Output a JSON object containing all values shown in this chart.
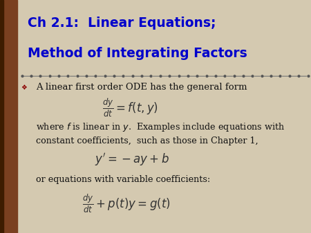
{
  "title_line1": "Ch 2.1:  Linear Equations;",
  "title_line2": "Method of Integrating Factors",
  "title_color": "#0000CC",
  "bg_color": "#D4C9B0",
  "left_bar_color": "#7A4020",
  "divider_color": "#555555",
  "bullet_color": "#8B0000",
  "body_color": "#111111",
  "eq1": "$\\frac{dy}{dt} = f(t, y)$",
  "eq2": "$y^{\\prime} = -ay + b$",
  "eq3": "$\\frac{dy}{dt} + p(t)y = g(t)$",
  "text1": "A linear first order ODE has the general form",
  "text2a": "where $f$ is linear in $y$.  Examples include equations with",
  "text2b": "constant coefficients,  such as those in Chapter 1,",
  "text3": "or equations with variable coefficients:"
}
